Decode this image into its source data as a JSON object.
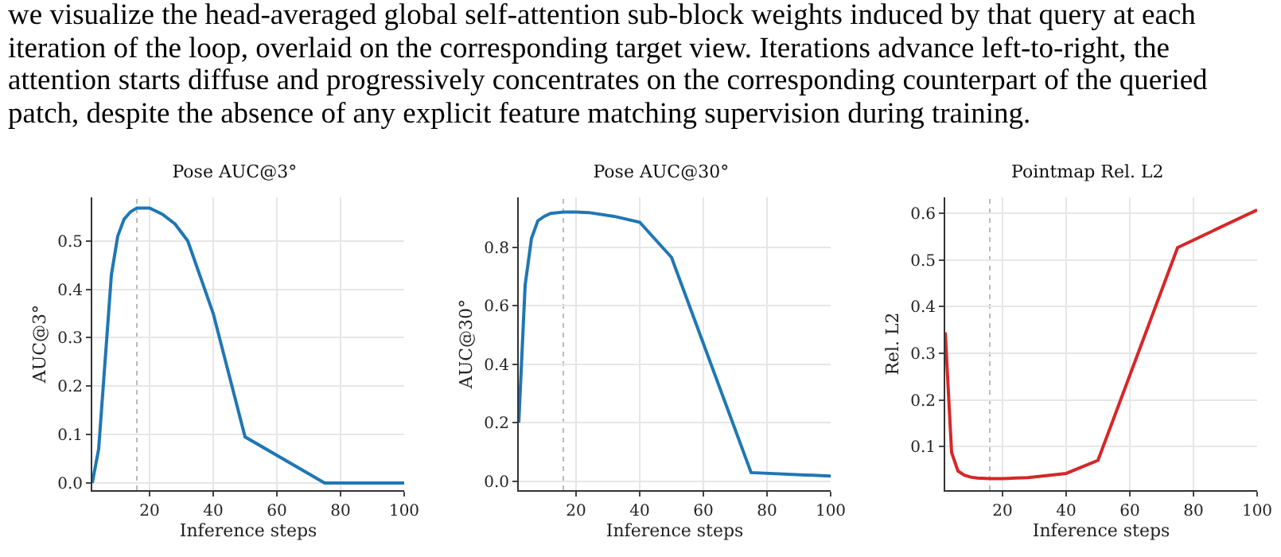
{
  "chart_data": [
    {
      "type": "other",
      "annotations": [
        "we visualize the head-averaged global self-attention sub-block weights induced by that query at each",
        "iteration of the loop, overlaid on the corresponding target view. Iterations advance left-to-right, the",
        "attention starts diffuse and progressively concentrates on the corresponding counterpart of the queried",
        "patch, despite the absence of any explicit feature matching supervision during training."
      ]
    },
    {
      "type": "line",
      "title": "Pose AUC@3°",
      "xlabel": "Inference steps",
      "ylabel": "AUC@3°",
      "x": [
        2,
        4,
        6,
        8,
        10,
        12,
        14,
        16,
        20,
        24,
        28,
        32,
        40,
        50,
        75,
        100
      ],
      "series": [
        {
          "color": "#1f77b4",
          "values": [
            0,
            0.07,
            0.25,
            0.43,
            0.51,
            0.545,
            0.56,
            0.568,
            0.568,
            0.555,
            0.535,
            0.5,
            0.35,
            0.095,
            0,
            0
          ]
        }
      ],
      "xlim": [
        2,
        100
      ],
      "xticks": [
        20,
        40,
        60,
        80,
        100
      ],
      "ylim": [
        -0.015,
        0.59
      ],
      "yticks": [
        {
          "value": 0,
          "label": "0.0"
        },
        0.1,
        0.2,
        0.3,
        0.4,
        0.5
      ],
      "grid": true,
      "ref_lines": [
        {
          "axis": "x",
          "value": 16,
          "color": "#bbbbbb",
          "line_style": "dotted"
        }
      ]
    },
    {
      "type": "line",
      "title": "Pose AUC@30°",
      "xlabel": "Inference steps",
      "ylabel": "AUC@30°",
      "x": [
        2,
        4,
        6,
        8,
        10,
        12,
        16,
        20,
        24,
        32,
        40,
        50,
        75,
        100
      ],
      "series": [
        {
          "color": "#1f77b4",
          "values": [
            0.2,
            0.67,
            0.83,
            0.89,
            0.905,
            0.915,
            0.92,
            0.92,
            0.918,
            0.905,
            0.885,
            0.765,
            0.03,
            0.018
          ]
        }
      ],
      "xlim": [
        2,
        100
      ],
      "xticks": [
        20,
        40,
        60,
        80,
        100
      ],
      "ylim": [
        -0.03,
        0.97
      ],
      "yticks": [
        {
          "value": 0,
          "label": "0.0"
        },
        0.2,
        0.4,
        0.6,
        0.8
      ],
      "grid": true,
      "ref_lines": [
        {
          "axis": "x",
          "value": 16,
          "color": "#bbbbbb",
          "line_style": "dotted"
        }
      ]
    },
    {
      "type": "line",
      "title": "Pointmap Rel. L2",
      "xlabel": "Inference steps",
      "ylabel": "Rel. L2",
      "x": [
        2,
        4,
        6,
        8,
        10,
        12,
        16,
        20,
        28,
        40,
        50,
        75,
        100
      ],
      "series": [
        {
          "color": "#d62728",
          "values": [
            0.345,
            0.087,
            0.047,
            0.038,
            0.034,
            0.032,
            0.031,
            0.031,
            0.033,
            0.042,
            0.07,
            0.527,
            0.608
          ]
        }
      ],
      "xlim": [
        2,
        100
      ],
      "xticks": [
        20,
        40,
        60,
        80,
        100
      ],
      "ylim": [
        0.006,
        0.635
      ],
      "yticks": [
        0.1,
        0.2,
        0.3,
        0.4,
        0.5,
        0.6
      ],
      "grid": true,
      "ref_lines": [
        {
          "axis": "x",
          "value": 16,
          "color": "#bbbbbb",
          "line_style": "dotted"
        }
      ]
    }
  ]
}
